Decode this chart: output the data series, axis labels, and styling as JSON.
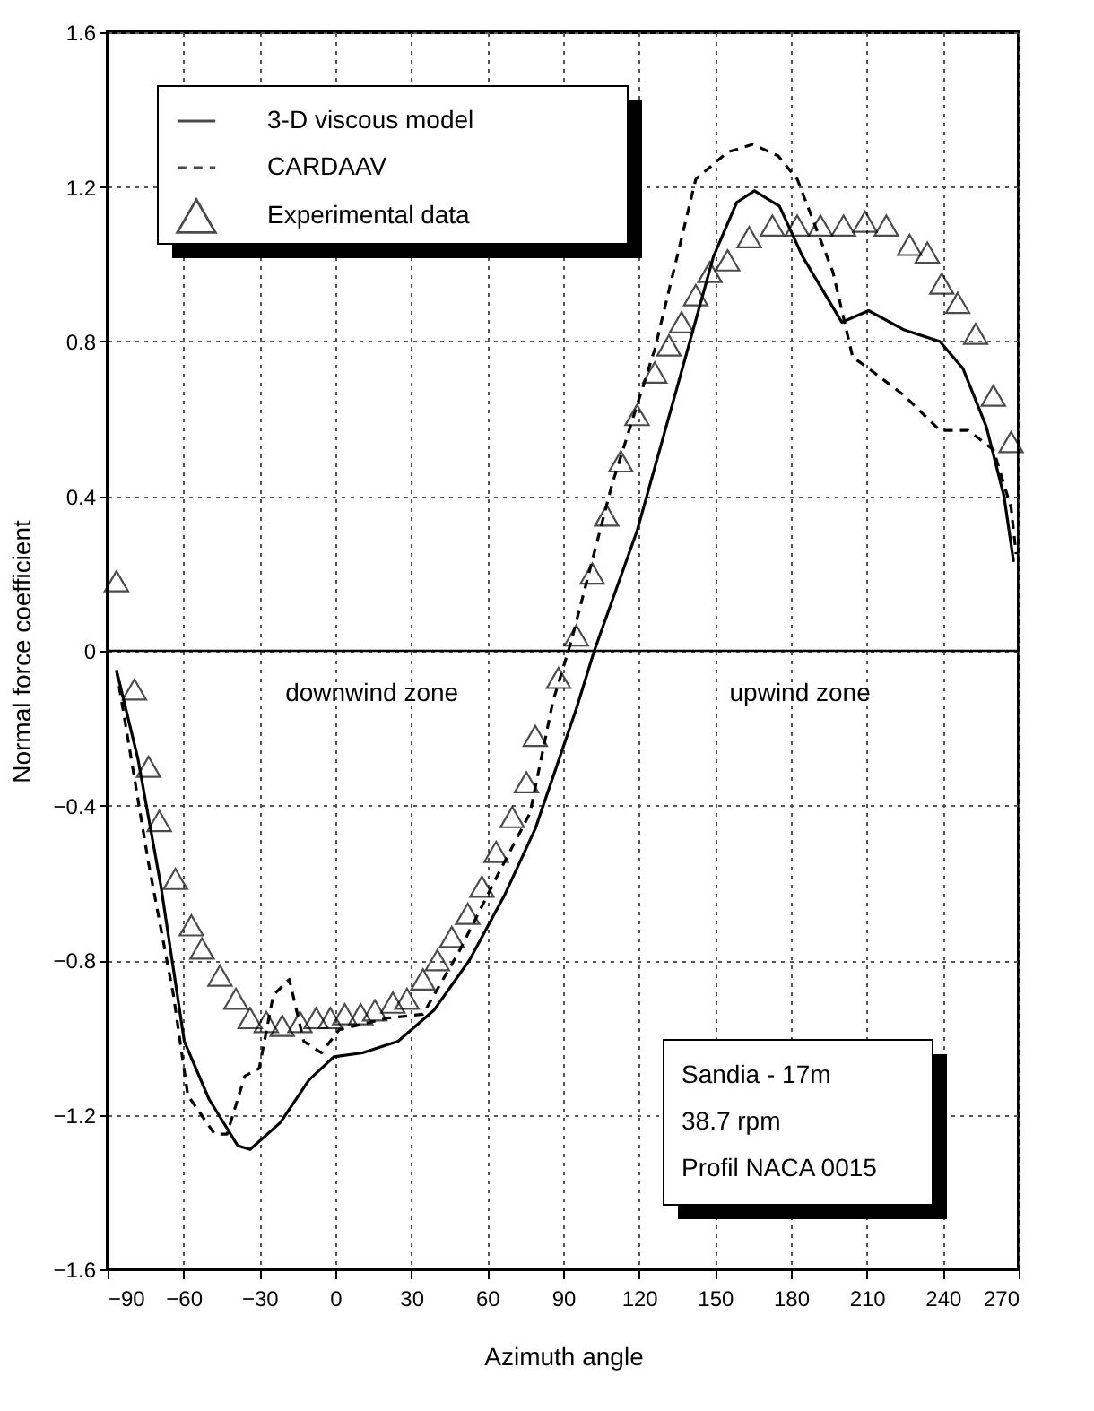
{
  "chart_data": {
    "type": "line",
    "xlabel": "Azimuth angle",
    "ylabel": "Normal force coefficient",
    "xlim": [
      -90,
      270
    ],
    "xticks": [
      -90,
      -60,
      -30,
      0,
      30,
      60,
      90,
      120,
      150,
      180,
      210,
      240,
      270
    ],
    "ylim": [
      -1.6,
      1.6
    ],
    "yticks": [
      -1.6,
      -1.2,
      -0.8,
      -0.4,
      0,
      0.4,
      0.8,
      1.2,
      1.6
    ],
    "grid": true,
    "legend": "top left",
    "ref_lines": [
      {
        "axis": "y",
        "value": 0,
        "color": "#000000",
        "line_style": "solid"
      }
    ],
    "annotations": [
      "downwind zone",
      "upwind zone",
      "Sandia - 17m",
      "38.7 rpm",
      "Profil NACA 0015"
    ],
    "series": [
      {
        "name": "3-D viscous model",
        "type": "line",
        "color": "#000000",
        "line_style": "solid",
        "x": [
          -86.5,
          -78,
          -68.9,
          -59.7,
          -49.9,
          -38.6,
          -33.7,
          -21.7,
          -10.4,
          -0.6,
          10.7,
          24.8,
          38.9,
          53,
          67,
          79,
          95.2,
          102.3,
          119.2,
          135.4,
          149.4,
          158.6,
          165.6,
          175.5,
          184.6,
          200.1,
          210.7,
          224.8,
          238.9,
          248,
          257.2,
          264.2,
          268
        ],
        "values": [
          -0.05,
          -0.28,
          -0.61,
          -1.01,
          -1.16,
          -1.28,
          -1.29,
          -1.22,
          -1.11,
          -1.05,
          -1.04,
          -1.01,
          -0.93,
          -0.8,
          -0.63,
          -0.46,
          -0.15,
          0.0,
          0.31,
          0.69,
          1.02,
          1.16,
          1.19,
          1.15,
          1.02,
          0.85,
          0.88,
          0.83,
          0.8,
          0.73,
          0.58,
          0.4,
          0.23
        ]
      },
      {
        "name": "CARDAAV",
        "type": "line",
        "color": "#000000",
        "line_style": "dashed",
        "x": [
          -86.5,
          -73.8,
          -64,
          -58.3,
          -47.7,
          -42.8,
          -35.8,
          -30.1,
          -24.5,
          -18.2,
          -12.5,
          -5.5,
          1.5,
          20.6,
          34.6,
          48.7,
          64.9,
          76.9,
          86,
          93,
          109.3,
          126.2,
          142.4,
          155,
          165,
          175,
          182.5,
          196.6,
          204.4,
          212.8,
          224.8,
          238.9,
          250.1,
          260,
          267,
          269
        ],
        "values": [
          -0.05,
          -0.55,
          -0.89,
          -1.15,
          -1.25,
          -1.25,
          -1.1,
          -1.08,
          -0.89,
          -0.85,
          -1.01,
          -1.04,
          -0.98,
          -0.95,
          -0.94,
          -0.78,
          -0.57,
          -0.42,
          -0.13,
          0.02,
          0.43,
          0.78,
          1.22,
          1.29,
          1.31,
          1.28,
          1.22,
          0.98,
          0.76,
          0.72,
          0.66,
          0.57,
          0.57,
          0.52,
          0.37,
          0.25
        ]
      },
      {
        "name": "Experimental data",
        "type": "scatter",
        "color": "#000000",
        "marker": "triangle",
        "x": [
          -86.5,
          -79.4,
          -73.8,
          -69.6,
          -63.2,
          -56.9,
          -52.7,
          -45.6,
          -39.3,
          -33.7,
          -27.3,
          -21,
          -14,
          -7.6,
          -2,
          3.7,
          10,
          15.6,
          22.7,
          28.3,
          34.6,
          40.3,
          46,
          52.3,
          57.9,
          63.5,
          69.9,
          75.5,
          79,
          88.2,
          95.2,
          101.5,
          107.2,
          112.8,
          119.2,
          126.2,
          131.8,
          136.8,
          142.4,
          148,
          155,
          163.5,
          172.7,
          182.5,
          191.7,
          200.8,
          209.3,
          217.7,
          226.9,
          233.9,
          239.6,
          245.9,
          253,
          260,
          267
        ],
        "values": [
          0.18,
          -0.1,
          -0.3,
          -0.44,
          -0.59,
          -0.71,
          -0.77,
          -0.84,
          -0.9,
          -0.95,
          -0.96,
          -0.97,
          -0.96,
          -0.95,
          -0.95,
          -0.94,
          -0.94,
          -0.93,
          -0.91,
          -0.9,
          -0.85,
          -0.8,
          -0.74,
          -0.68,
          -0.61,
          -0.52,
          -0.43,
          -0.34,
          -0.22,
          -0.07,
          0.04,
          0.2,
          0.35,
          0.49,
          0.61,
          0.72,
          0.79,
          0.85,
          0.92,
          0.98,
          1.01,
          1.07,
          1.1,
          1.1,
          1.1,
          1.1,
          1.11,
          1.1,
          1.05,
          1.03,
          0.95,
          0.9,
          0.82,
          0.66,
          0.54
        ]
      }
    ]
  }
}
